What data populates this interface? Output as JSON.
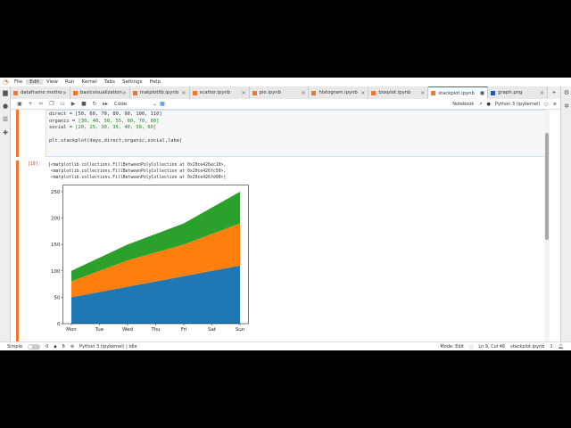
{
  "menu": [
    "File",
    "Edit",
    "View",
    "Run",
    "Kernel",
    "Tabs",
    "Settings",
    "Help"
  ],
  "tabs": [
    {
      "label": "dataframe method",
      "icon": "notebook-icon"
    },
    {
      "label": "basicvisualization.ij",
      "icon": "notebook-icon"
    },
    {
      "label": "matplotlib.ipynb",
      "icon": "notebook-icon"
    },
    {
      "label": "scatter.ipynb",
      "icon": "notebook-icon"
    },
    {
      "label": "pie.ipynb",
      "icon": "notebook-icon"
    },
    {
      "label": "histogram.ipynb",
      "icon": "notebook-icon"
    },
    {
      "label": "boxplot.ipynb",
      "icon": "notebook-icon"
    },
    {
      "label": "stackplot.ipynb",
      "icon": "notebook-icon",
      "active": true
    },
    {
      "label": "graph.png",
      "icon": "image-icon"
    }
  ],
  "toolbar": {
    "cell_type": "Code",
    "notebook_label": "Notebook",
    "kernel": "Python 3 (ipykernel)"
  },
  "code": {
    "line1": "direct = [50, 60, 70, 80, 90, 100, 110]",
    "line2_a": "organic = ",
    "line2_b": "[30, 40, 50, 55, 60, 70, 80]",
    "line3_a": "social = ",
    "line3_b": "[20, 25, 30, 35, 40, 50, 60]",
    "line5": "plt.stackplot(days,direct,organic,social,labe)"
  },
  "output": {
    "prompt": "[10]:",
    "text": "[<matplotlib.collections.FillBetweenPolyCollection at 0x20ce426ec10>,\n <matplotlib.collections.FillBetweenPolyCollection at 0x20ce426fc50>,\n <matplotlib.collections.FillBetweenPolyCollection at 0x20ce426fd90>]"
  },
  "status": {
    "mode_label": "Simple",
    "n1": "0",
    "n2": "8",
    "kernel_status": "Python 3 (ipykernel) | Idle",
    "mode": "Mode: Edit",
    "cursor": "Ln 9, Col 46",
    "file": "stackplot.ipynb",
    "notifications": "1"
  },
  "chart_data": {
    "type": "area",
    "stacked": true,
    "categories": [
      "Mon",
      "Tue",
      "Wed",
      "Thu",
      "Fri",
      "Sat",
      "Sun"
    ],
    "series": [
      {
        "values": [
          50,
          60,
          70,
          80,
          90,
          100,
          110
        ],
        "color": "#1f77b4"
      },
      {
        "values": [
          30,
          40,
          50,
          55,
          60,
          70,
          80
        ],
        "color": "#ff7f0e"
      },
      {
        "values": [
          20,
          25,
          30,
          35,
          40,
          50,
          60
        ],
        "color": "#2ca02c"
      }
    ],
    "ylim": [
      0,
      262.5
    ],
    "yticks": [
      0,
      50,
      100,
      150,
      200,
      250
    ],
    "grid": false
  }
}
